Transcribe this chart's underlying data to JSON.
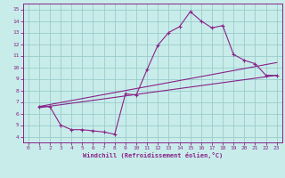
{
  "xlabel": "Windchill (Refroidissement éolien,°C)",
  "bg_color": "#c8ecea",
  "line_color": "#882288",
  "grid_color": "#99cccc",
  "xlim": [
    -0.5,
    23.5
  ],
  "ylim": [
    3.5,
    15.5
  ],
  "xticks": [
    0,
    1,
    2,
    3,
    4,
    5,
    6,
    7,
    8,
    9,
    10,
    11,
    12,
    13,
    14,
    15,
    16,
    17,
    18,
    19,
    20,
    21,
    22,
    23
  ],
  "yticks": [
    4,
    5,
    6,
    7,
    8,
    9,
    10,
    11,
    12,
    13,
    14,
    15
  ],
  "line1_x": [
    1,
    2,
    3,
    4,
    5,
    6,
    7,
    8,
    9,
    10,
    11,
    12,
    13,
    14,
    15,
    16,
    17,
    18,
    19,
    20,
    21,
    22,
    23
  ],
  "line1_y": [
    6.6,
    6.6,
    5.0,
    4.6,
    4.6,
    4.5,
    4.4,
    4.2,
    7.7,
    7.6,
    9.8,
    11.9,
    13.0,
    13.5,
    14.8,
    14.0,
    13.4,
    13.6,
    11.1,
    10.6,
    10.3,
    9.3,
    9.3
  ],
  "line2_x": [
    1,
    23
  ],
  "line2_y": [
    6.6,
    10.4
  ],
  "line3_x": [
    1,
    23
  ],
  "line3_y": [
    6.5,
    9.3
  ]
}
